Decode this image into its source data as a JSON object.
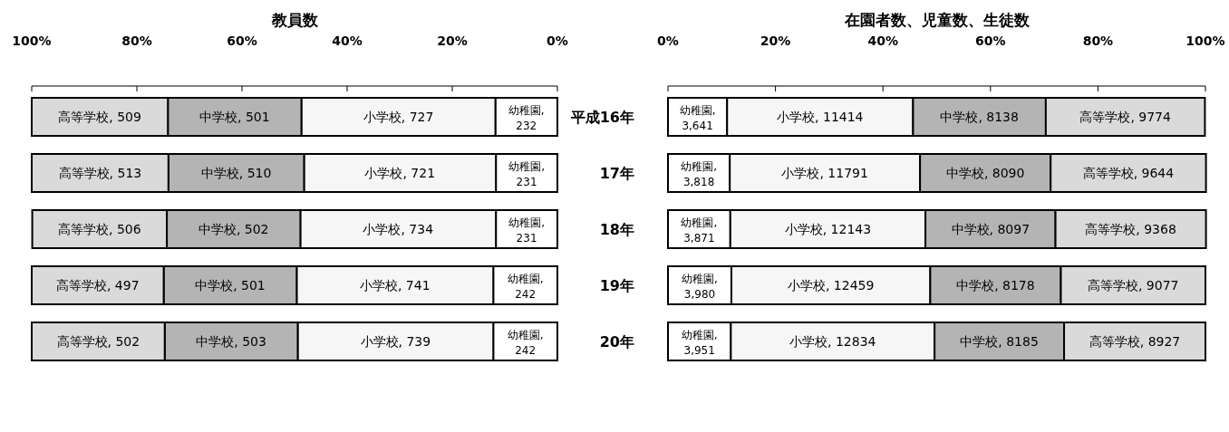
{
  "chart_data": [
    {
      "type": "bar",
      "orientation": "horizontal",
      "stacked": true,
      "title": "教員数",
      "categories": [
        "平成16年",
        "17年",
        "18年",
        "19年",
        "20年"
      ],
      "xlim": [
        100,
        0
      ],
      "xticks": [
        {
          "value": 100,
          "label": "100%"
        },
        {
          "value": 80,
          "label": "80%"
        },
        {
          "value": 60,
          "label": "60%"
        },
        {
          "value": 40,
          "label": "40%"
        },
        {
          "value": 20,
          "label": "20%"
        },
        {
          "value": 0,
          "label": "0%"
        }
      ],
      "grid": false,
      "series": [
        {
          "color": "#ffffff",
          "values": [
            11.8,
            11.7,
            11.7,
            12.2,
            12.2
          ]
        },
        {
          "color": "#f6f6f6",
          "values": [
            36.9,
            36.5,
            37.2,
            37.4,
            37.2
          ]
        },
        {
          "color": "#b4b4b4",
          "values": [
            25.4,
            25.8,
            25.4,
            25.3,
            25.3
          ]
        },
        {
          "color": "#dadada",
          "values": [
            25.9,
            26.0,
            25.6,
            25.1,
            25.3
          ]
        }
      ],
      "annotations": [
        "幼稚園, 232",
        "幼稚園, 231",
        "幼稚園, 231",
        "幼稚園, 242",
        "幼稚園, 242",
        "小学校, 727",
        "小学校, 721",
        "小学校, 734",
        "小学校, 741",
        "小学校, 739",
        "中学校, 501",
        "中学校, 510",
        "中学校, 502",
        "中学校, 501",
        "中学校, 503",
        "高等学校, 509",
        "高等学校, 513",
        "高等学校, 506",
        "高等学校, 497",
        "高等学校, 502"
      ]
    },
    {
      "type": "bar",
      "orientation": "horizontal",
      "stacked": true,
      "title": "在園者数、児童数、生徒数",
      "tick_labels": "x",
      "xlim": [
        0,
        100
      ],
      "xticks": [
        {
          "value": 0,
          "label": "0%"
        },
        {
          "value": 20,
          "label": "20%"
        },
        {
          "value": 40,
          "label": "40%"
        },
        {
          "value": 60,
          "label": "60%"
        },
        {
          "value": 80,
          "label": "80%"
        },
        {
          "value": 100,
          "label": "100%"
        }
      ],
      "grid": false,
      "series": [
        {
          "color": "#ffffff",
          "values": [
            11.0,
            11.5,
            11.6,
            11.8,
            11.7
          ]
        },
        {
          "color": "#f6f6f6",
          "values": [
            34.6,
            35.4,
            36.3,
            37.0,
            37.9
          ]
        },
        {
          "color": "#b4b4b4",
          "values": [
            24.7,
            24.3,
            24.2,
            24.3,
            24.1
          ]
        },
        {
          "color": "#dadada",
          "values": [
            29.6,
            28.9,
            28.0,
            26.9,
            26.3
          ]
        }
      ],
      "annotations": [
        "幼稚園, 3,641",
        "幼稚園, 3,818",
        "幼稚園, 3,871",
        "幼稚園, 3,980",
        "幼稚園, 3,951",
        "小学校, 11414",
        "小学校, 11791",
        "小学校, 12143",
        "小学校, 12459",
        "小学校, 12834",
        "中学校, 8138",
        "中学校, 8090",
        "中学校, 8097",
        "中学校, 8178",
        "中学校, 8185",
        "高等学校, 9774",
        "高等学校, 9644",
        "高等学校, 9368",
        "高等学校, 9077",
        "高等学校, 8927"
      ]
    }
  ]
}
